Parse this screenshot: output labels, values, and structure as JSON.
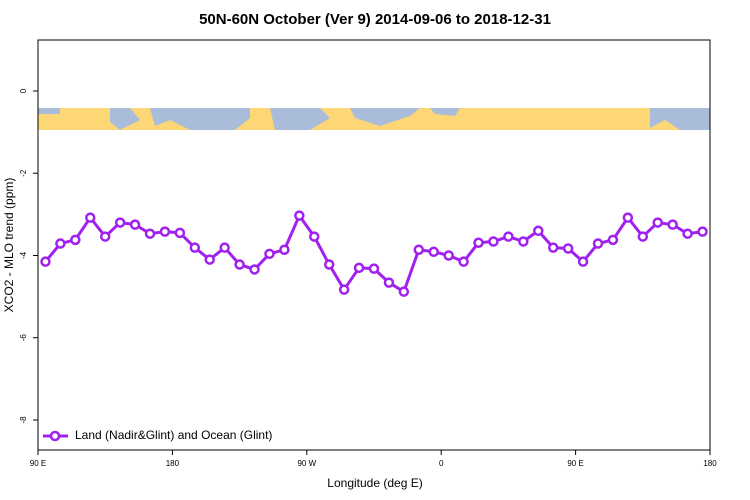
{
  "chart_data": {
    "type": "line",
    "title": "50N-60N October (Ver 9)   2014-09-06 to 2018-12-31",
    "x_label": "Longitude (deg E)",
    "y_label": "XCO2 - MLO trend (ppm)",
    "x": [
      95,
      105,
      115,
      125,
      135,
      145,
      155,
      165,
      175,
      185,
      195,
      205,
      215,
      225,
      235,
      245,
      255,
      265,
      275,
      285,
      295,
      305,
      315,
      325,
      335,
      345,
      355,
      365,
      375,
      385,
      395,
      405,
      415,
      425,
      435,
      445,
      455,
      465,
      475,
      485,
      495,
      505,
      515,
      525,
      535
    ],
    "series": [
      {
        "name": "Land (Nadir&Glint) and Ocean (Glint)",
        "color": "#a020f0",
        "values": [
          -4.15,
          -3.71,
          -3.62,
          -3.08,
          -3.54,
          -3.2,
          -3.25,
          -3.47,
          -3.42,
          -3.45,
          -3.81,
          -4.1,
          -3.81,
          -4.22,
          -4.34,
          -3.96,
          -3.86,
          -3.03,
          -3.54,
          -4.22,
          -4.83,
          -4.3,
          -4.32,
          -4.66,
          -4.88,
          -3.86,
          -3.91,
          -4.0,
          -4.15,
          -3.69,
          -3.66,
          -3.54,
          -3.66,
          -3.4,
          -3.81,
          -3.83,
          -4.15,
          -3.71,
          -3.62,
          -3.08,
          -3.54,
          -3.2,
          -3.25,
          -3.47,
          -3.42
        ]
      }
    ],
    "xlim": [
      90,
      540
    ],
    "xticks": [
      {
        "value": 90,
        "label": "90 E"
      },
      180,
      {
        "value": 270,
        "label": "90 W"
      },
      {
        "value": 360,
        "label": "0"
      },
      {
        "value": 450,
        "label": "90 E"
      },
      {
        "value": 540,
        "label": "180"
      }
    ],
    "ylim": [
      -8.73,
      1.24
    ],
    "yticks": [
      0,
      -2,
      -4,
      -6,
      -8
    ],
    "legend": "bottom-left"
  }
}
